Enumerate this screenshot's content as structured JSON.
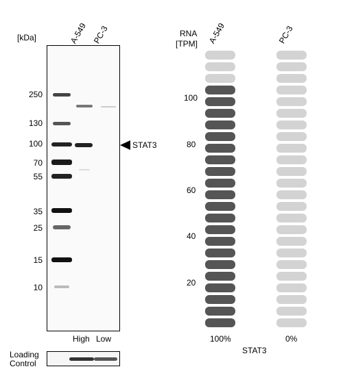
{
  "western_blot": {
    "unit_label": "[kDa]",
    "lanes": [
      "A-549",
      "PC-3"
    ],
    "markers": [
      "250",
      "130",
      "100",
      "70",
      "55",
      "35",
      "25",
      "15",
      "10"
    ],
    "target_label": "STAT3",
    "intensity_labels": [
      "High",
      "Low"
    ],
    "loading_control_label_line1": "Loading",
    "loading_control_label_line2": "Control"
  },
  "rna": {
    "header_line1": "RNA",
    "header_line2": "[TPM]",
    "samples": [
      "A-549",
      "PC-3"
    ],
    "y_ticks": [
      "100",
      "80",
      "60",
      "40",
      "20"
    ],
    "percentages": [
      "100%",
      "0%"
    ],
    "gene": "STAT3",
    "colors": {
      "filled": "#555555",
      "empty": "#d3d3d3"
    }
  }
}
